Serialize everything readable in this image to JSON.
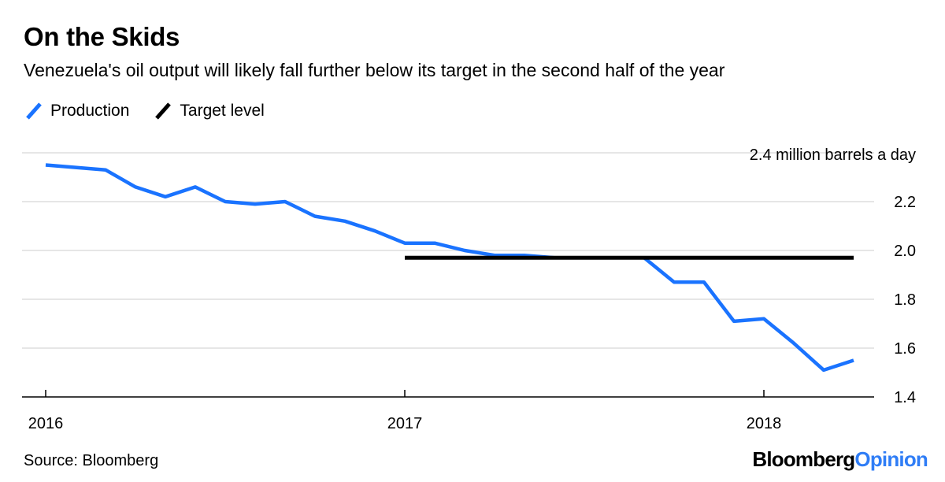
{
  "header": {
    "title": "On the Skids",
    "subtitle": "Venezuela's oil output will likely fall further below its target in the second half of the year"
  },
  "legend": [
    {
      "label": "Production",
      "color": "#1a73ff"
    },
    {
      "label": "Target level",
      "color": "#000000"
    }
  ],
  "footer": {
    "source": "Source: Bloomberg",
    "brand_part1": "Bloomberg",
    "brand_part2": "Opinion"
  },
  "chart_data": {
    "type": "line",
    "unit_label": "2.4 million barrels a day",
    "x_tick_labels": [
      "2016",
      "2017",
      "2018"
    ],
    "y_ticks": [
      1.4,
      1.6,
      1.8,
      2.0,
      2.2,
      2.4
    ],
    "ylim": [
      1.4,
      2.4
    ],
    "xlim": [
      "2016-01",
      "2018-05"
    ],
    "grid": true,
    "legend_position": "top-left",
    "series": [
      {
        "name": "Production",
        "color": "#1a73ff",
        "x": [
          "2016-01",
          "2016-02",
          "2016-03",
          "2016-04",
          "2016-05",
          "2016-06",
          "2016-07",
          "2016-08",
          "2016-09",
          "2016-10",
          "2016-11",
          "2016-12",
          "2017-01",
          "2017-02",
          "2017-03",
          "2017-04",
          "2017-05",
          "2017-06",
          "2017-07",
          "2017-08",
          "2017-09",
          "2017-10",
          "2017-11",
          "2017-12",
          "2018-01",
          "2018-02",
          "2018-03",
          "2018-04"
        ],
        "values": [
          2.35,
          2.34,
          2.33,
          2.26,
          2.22,
          2.26,
          2.2,
          2.19,
          2.2,
          2.14,
          2.12,
          2.08,
          2.03,
          2.03,
          2.0,
          1.98,
          1.98,
          1.97,
          1.97,
          1.97,
          1.97,
          1.87,
          1.87,
          1.71,
          1.72,
          1.62,
          1.51,
          1.55
        ]
      },
      {
        "name": "Target level",
        "color": "#000000",
        "x": [
          "2017-01",
          "2018-04"
        ],
        "values": [
          1.97,
          1.97
        ]
      }
    ]
  }
}
